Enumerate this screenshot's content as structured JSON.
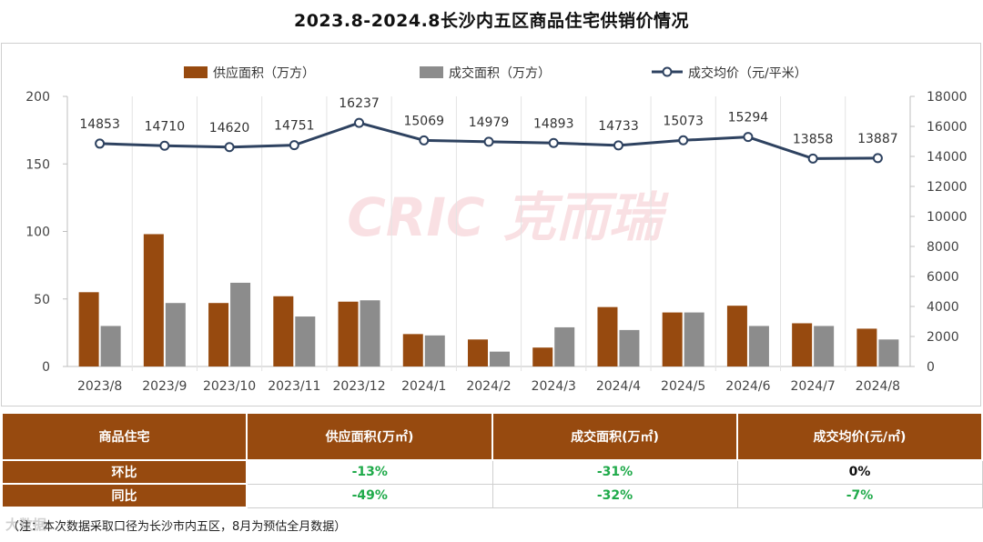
{
  "title": "2023.8-2024.8长沙内五区商品住宅供销价情况",
  "chart_data": {
    "type": "bar",
    "categories": [
      "2023/8",
      "2023/9",
      "2023/10",
      "2023/11",
      "2023/12",
      "2024/1",
      "2024/2",
      "2024/3",
      "2024/4",
      "2024/5",
      "2024/6",
      "2024/7",
      "2024/8"
    ],
    "series": [
      {
        "name": "供应面积（万方）",
        "type": "bar",
        "axis": "left",
        "color": "#974a0f",
        "values": [
          55,
          98,
          47,
          52,
          48,
          24,
          20,
          14,
          44,
          40,
          45,
          32,
          28
        ]
      },
      {
        "name": "成交面积（万方）",
        "type": "bar",
        "axis": "left",
        "color": "#8c8c8c",
        "values": [
          30,
          47,
          62,
          37,
          49,
          23,
          11,
          29,
          27,
          40,
          30,
          30,
          20
        ]
      },
      {
        "name": "成交均价（元/平米）",
        "type": "line",
        "axis": "right",
        "color": "#2e4260",
        "values": [
          14853,
          14710,
          14620,
          14751,
          16237,
          15069,
          14979,
          14893,
          14733,
          15073,
          15294,
          13858,
          13887
        ]
      }
    ],
    "ylim_left": [
      0,
      200
    ],
    "yticks_left": [
      "0",
      "50",
      "100",
      "150",
      "200"
    ],
    "ylim_right": [
      0,
      18000
    ],
    "yticks_right": [
      "0",
      "2000",
      "4000",
      "6000",
      "8000",
      "10000",
      "12000",
      "14000",
      "16000",
      "18000"
    ],
    "grid": "vertical category separators",
    "legend_position": "top",
    "watermark": "CRIC 克而瑞"
  },
  "table": {
    "headers": [
      "商品住宅",
      "供应面积(万㎡)",
      "成交面积(万㎡)",
      "成交均价(元/㎡)"
    ],
    "rows": [
      {
        "label": "环比",
        "supply": "-13%",
        "deal": "-31%",
        "price": "0%"
      },
      {
        "label": "同比",
        "supply": "-49%",
        "deal": "-32%",
        "price": "-7%"
      }
    ]
  },
  "note": "（注：本次数据采取口径为长沙市内五区，8月为预估全月数据）",
  "watermark_bottom": "大数据"
}
